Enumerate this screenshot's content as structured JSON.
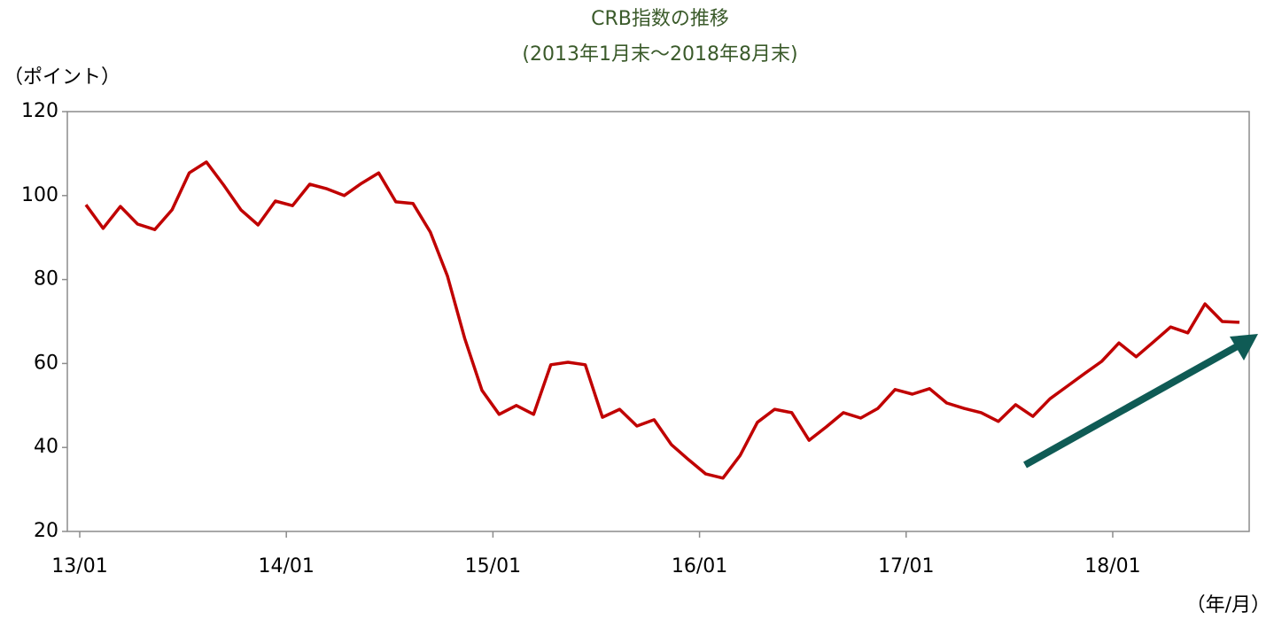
{
  "chart_data": {
    "type": "line",
    "title": "CRB指数の推移",
    "subtitle": "(2013年1月末～2018年8月末)",
    "y_label": "（ポイント）",
    "x_label": "（年/月）",
    "categories": [
      "13/01",
      null,
      null,
      null,
      null,
      null,
      null,
      null,
      null,
      null,
      null,
      null,
      "14/01",
      null,
      null,
      null,
      null,
      null,
      null,
      null,
      null,
      null,
      null,
      null,
      "15/01",
      null,
      null,
      null,
      null,
      null,
      null,
      null,
      null,
      null,
      null,
      null,
      "16/01",
      null,
      null,
      null,
      null,
      null,
      null,
      null,
      null,
      null,
      null,
      null,
      "17/01",
      null,
      null,
      null,
      null,
      null,
      null,
      null,
      null,
      null,
      null,
      null,
      "18/01",
      null,
      null,
      null,
      null,
      null,
      null,
      null
    ],
    "series": [
      {
        "name": "CRB指数",
        "color": "#c00000",
        "values": [
          97.8,
          92.2,
          97.4,
          93.2,
          91.9,
          96.6,
          105.4,
          108.0,
          102.5,
          96.6,
          93.0,
          98.7,
          97.6,
          102.7,
          101.6,
          100.0,
          102.9,
          105.4,
          98.5,
          98.1,
          91.3,
          80.8,
          66.0,
          53.6,
          47.9,
          50.0,
          47.9,
          59.7,
          60.3,
          59.7,
          47.2,
          49.1,
          45.1,
          46.6,
          40.7,
          37.1,
          33.7,
          32.7,
          38.1,
          46.0,
          49.1,
          48.3,
          41.7,
          44.9,
          48.3,
          47.0,
          49.3,
          53.8,
          52.7,
          54.0,
          50.6,
          49.3,
          48.3,
          46.2,
          50.2,
          47.4,
          51.6,
          54.6,
          57.6,
          60.5,
          64.9,
          61.6,
          65.1,
          68.7,
          67.3,
          74.2,
          70.0,
          69.8
        ]
      }
    ],
    "ylim": [
      20,
      120
    ],
    "yticks": [
      20,
      40,
      60,
      80,
      100,
      120
    ],
    "grid": false
  }
}
